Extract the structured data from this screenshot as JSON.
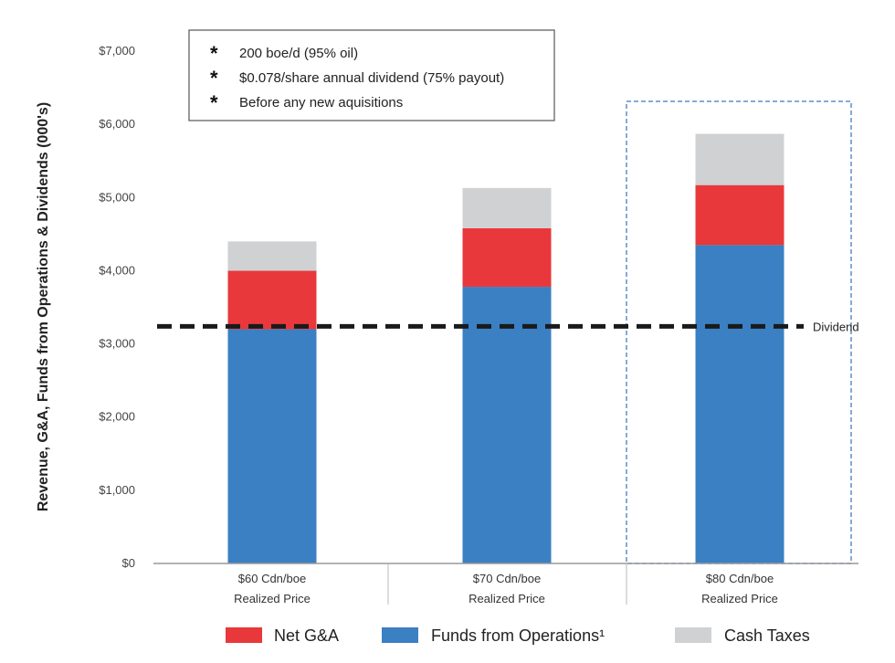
{
  "chart_data": {
    "type": "bar",
    "stacked": true,
    "ylabel": "Revenue, G&A, Funds from Operations & Dividends (000's)",
    "xlabel": "",
    "ylim": [
      0,
      7000
    ],
    "yticks": [
      0,
      1000,
      2000,
      3000,
      4000,
      5000,
      6000,
      7000
    ],
    "ytick_labels": [
      "$0",
      "$1,000",
      "$2,000",
      "$3,000",
      "$4,000",
      "$5,000",
      "$6,000",
      "$7,000"
    ],
    "categories": [
      [
        "$60 Cdn/boe",
        "Realized Price"
      ],
      [
        "$70 Cdn/boe",
        "Realized Price"
      ],
      [
        "$80 Cdn/boe",
        "Realized Price"
      ]
    ],
    "series": [
      {
        "name": "Funds from Operations¹",
        "color": "#3a80c3",
        "values": [
          3200,
          3780,
          4350
        ]
      },
      {
        "name": "Net G&A",
        "color": "#e8383b",
        "values": [
          800,
          800,
          820
        ]
      },
      {
        "name": "Cash Taxes",
        "color": "#d0d1d3",
        "values": [
          400,
          550,
          700
        ]
      }
    ],
    "legend_order": [
      "Net G&A",
      "Funds from Operations¹",
      "Cash Taxes"
    ],
    "legend_placement": "bottom",
    "reference_line": {
      "label": "Dividend",
      "value": 3240,
      "style": "dashed",
      "color": "#1a1a1a"
    },
    "highlighted_category": 2,
    "highlight_color": "#5b8fc7",
    "notes": [
      "200 boe/d (95% oil)",
      "$0.078/share annual dividend (75% payout)",
      "Before any new aquisitions"
    ],
    "note_marker": "*",
    "grid": false
  }
}
